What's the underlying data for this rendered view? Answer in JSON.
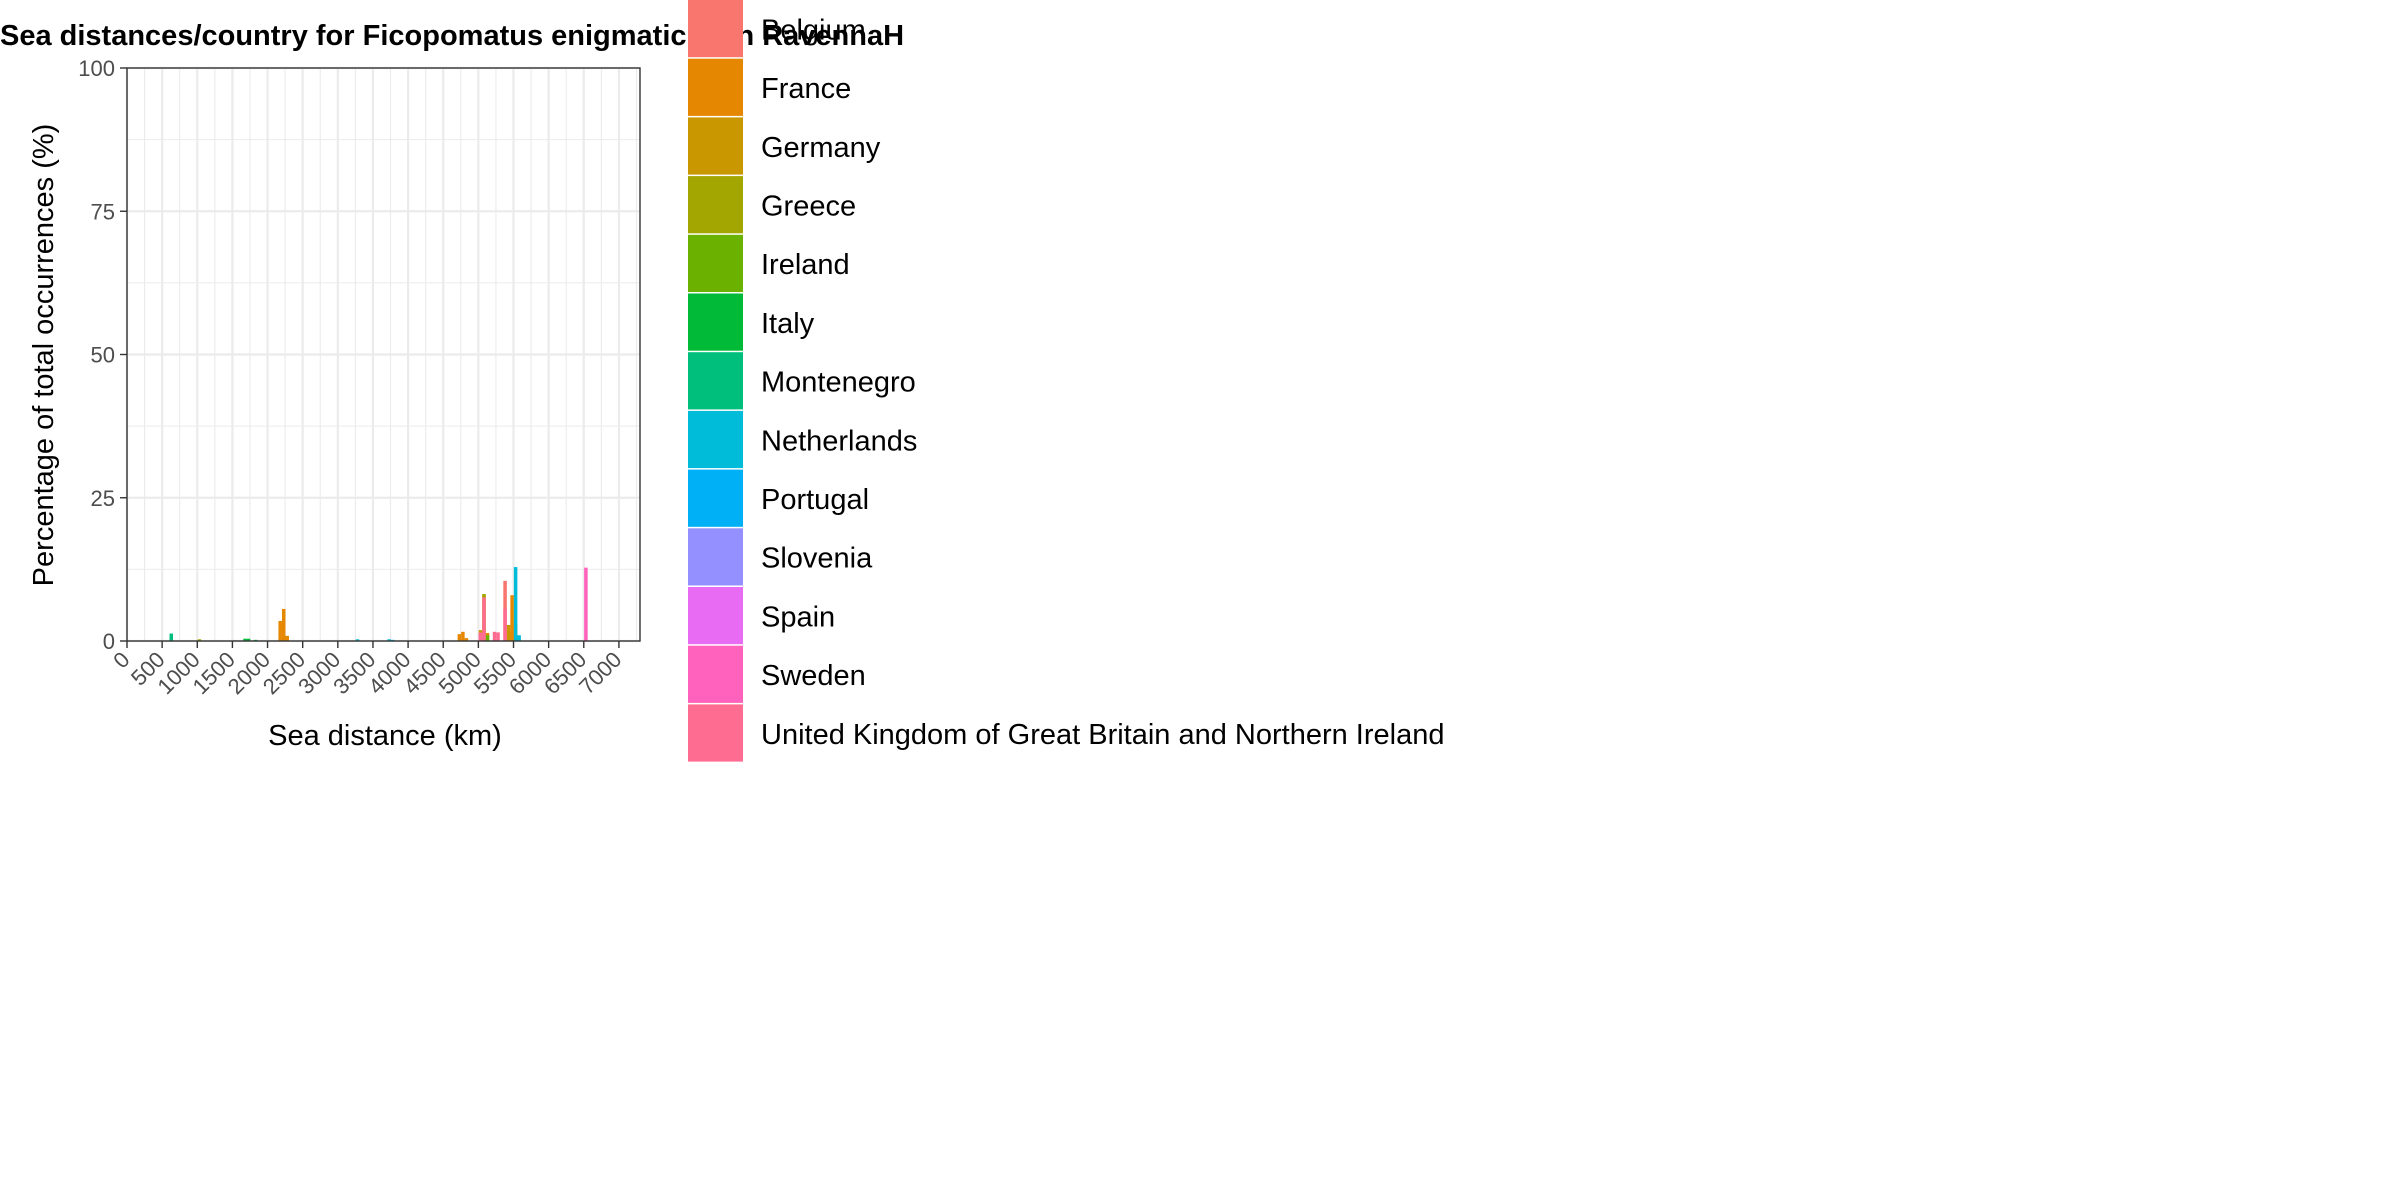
{
  "chart_data": {
    "type": "bar",
    "title": "Sea distances/country for Ficopomatus enigmaticus in RavennaH",
    "xlabel": "Sea distance (km)",
    "ylabel": "Percentage of total occurrences (%)",
    "xlim": [
      0,
      7300
    ],
    "ylim": [
      0,
      100
    ],
    "x_ticks": [
      0,
      500,
      1000,
      1500,
      2000,
      2500,
      3000,
      3500,
      4000,
      4500,
      5000,
      5500,
      6000,
      6500,
      7000
    ],
    "x_tick_labels": [
      "0",
      "500",
      "1000",
      "1500",
      "2000",
      "2500",
      "3000",
      "3500",
      "4000",
      "4500",
      "5000",
      "5500",
      "6000",
      "6500",
      "7000"
    ],
    "y_ticks": [
      0,
      25,
      50,
      75,
      100
    ],
    "y_tick_labels": [
      "0",
      "25",
      "50",
      "75",
      "100"
    ],
    "grid": true,
    "bin_width_km": 50,
    "legend_position": "right",
    "series": [
      {
        "name": "Belgium",
        "color": "#F8766D",
        "points": [
          [
            5380,
            10.5
          ],
          [
            5430,
            1.6
          ],
          [
            5480,
            0.8
          ]
        ]
      },
      {
        "name": "France",
        "color": "#E58700",
        "points": [
          [
            2180,
            3.5
          ],
          [
            2230,
            5.6
          ],
          [
            2280,
            0.9
          ],
          [
            4730,
            1.2
          ],
          [
            4780,
            1.6
          ],
          [
            4830,
            0.5
          ],
          [
            5080,
            8.0
          ],
          [
            5130,
            1.4
          ],
          [
            5480,
            8.0
          ],
          [
            5530,
            3.0
          ]
        ]
      },
      {
        "name": "Germany",
        "color": "#C99800",
        "points": [
          [
            5030,
            1.9
          ],
          [
            5430,
            2.8
          ]
        ]
      },
      {
        "name": "Greece",
        "color": "#A3A500",
        "points": [
          [
            1030,
            0.3
          ],
          [
            5080,
            8.2
          ]
        ]
      },
      {
        "name": "Ireland",
        "color": "#6BB100",
        "points": [
          [
            5130,
            1.0
          ]
        ]
      },
      {
        "name": "Italy",
        "color": "#00BA38",
        "points": [
          [
            1680,
            0.4
          ],
          [
            1730,
            0.4
          ],
          [
            1830,
            0.2
          ]
        ]
      },
      {
        "name": "Montenegro",
        "color": "#00BF7D",
        "points": [
          [
            630,
            1.3
          ]
        ]
      },
      {
        "name": "Netherlands",
        "color": "#00BCD8",
        "points": [
          [
            3280,
            0.3
          ],
          [
            3730,
            0.3
          ],
          [
            5530,
            12.9
          ],
          [
            5580,
            1.0
          ]
        ]
      },
      {
        "name": "Portugal",
        "color": "#00B0F6",
        "points": [
          [
            3780,
            0.2
          ]
        ]
      },
      {
        "name": "Slovenia",
        "color": "#9590FF",
        "points": [
          [
            1530,
            0.1
          ]
        ]
      },
      {
        "name": "Spain",
        "color": "#E76BF3",
        "points": [
          [
            5030,
            1.2
          ]
        ]
      },
      {
        "name": "Sweden",
        "color": "#FF62BC",
        "points": [
          [
            6530,
            12.8
          ]
        ]
      },
      {
        "name": "United Kingdom of Great Britain and Northern Ireland",
        "color": "#FF6C91",
        "points": [
          [
            5030,
            1.5
          ],
          [
            5080,
            7.6
          ],
          [
            5230,
            1.6
          ],
          [
            5280,
            1.5
          ],
          [
            5380,
            5.6
          ]
        ]
      }
    ]
  }
}
